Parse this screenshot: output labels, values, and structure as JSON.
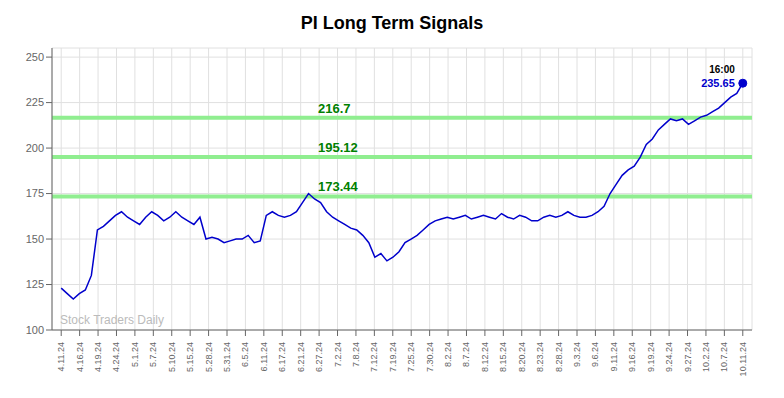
{
  "chart_data": {
    "type": "line",
    "title": "PI Long Term Signals",
    "color": "#0000cc",
    "grid": true,
    "x": [
      0,
      1,
      2,
      3,
      4,
      5,
      6,
      7,
      8,
      9,
      10,
      11,
      12,
      13,
      14,
      15,
      16,
      17,
      18,
      19,
      20,
      21,
      22,
      23,
      24,
      25,
      26,
      27,
      28,
      29,
      30,
      31,
      32,
      33,
      34,
      35,
      36,
      37,
      38,
      39,
      40,
      41,
      42,
      43,
      44,
      45,
      46,
      47,
      48,
      49,
      50,
      51,
      52,
      53,
      54,
      55,
      56,
      57,
      58,
      59,
      60,
      61,
      62,
      63,
      64,
      65,
      66,
      67,
      68,
      69,
      70,
      71,
      72,
      73,
      74,
      75,
      76,
      77,
      78,
      79,
      80,
      81,
      82,
      83,
      84,
      85,
      86,
      87,
      88,
      89,
      90,
      91,
      92,
      93,
      94,
      95,
      96,
      97,
      98,
      99,
      100,
      101,
      102,
      103,
      104,
      105,
      106,
      107,
      108,
      109,
      110,
      111,
      112,
      113
    ],
    "values": [
      123,
      120,
      117,
      120,
      122,
      130,
      155,
      157,
      160,
      163,
      165,
      162,
      160,
      158,
      162,
      165,
      163,
      160,
      162,
      165,
      162,
      160,
      158,
      162,
      150,
      151,
      150,
      148,
      149,
      150,
      150,
      152,
      148,
      149,
      163,
      165,
      163,
      162,
      163,
      165,
      170,
      175,
      172,
      170,
      165,
      162,
      160,
      158,
      156,
      155,
      152,
      148,
      140,
      142,
      138,
      140,
      143,
      148,
      150,
      152,
      155,
      158,
      160,
      161,
      162,
      161,
      162,
      163,
      161,
      162,
      163,
      162,
      161,
      164,
      162,
      161,
      163,
      162,
      160,
      160,
      162,
      163,
      162,
      163,
      165,
      163,
      162,
      162,
      163,
      165,
      168,
      175,
      180,
      185,
      188,
      190,
      195,
      202,
      205,
      210,
      213,
      216,
      215,
      216,
      213,
      215,
      217,
      218,
      220,
      222,
      225,
      228,
      230,
      235.65
    ],
    "xlim": [
      -1.527027,
      114.527027
    ],
    "xticks": [
      {
        "value": 0,
        "label": "4.11.24"
      },
      {
        "value": 3.054054,
        "label": "4.16.24"
      },
      {
        "value": 6.108108,
        "label": "4.19.24"
      },
      {
        "value": 9.162162,
        "label": "4.24.24"
      },
      {
        "value": 12.216216,
        "label": "5.1.24"
      },
      {
        "value": 15.27027,
        "label": "5.7.24"
      },
      {
        "value": 18.324324,
        "label": "5.10.24"
      },
      {
        "value": 21.378378,
        "label": "5.15.24"
      },
      {
        "value": 24.432432,
        "label": "5.28.24"
      },
      {
        "value": 27.486486,
        "label": "5.31.24"
      },
      {
        "value": 30.540541,
        "label": "6.5.24"
      },
      {
        "value": 33.594595,
        "label": "6.11.24"
      },
      {
        "value": 36.648649,
        "label": "6.17.24"
      },
      {
        "value": 39.702703,
        "label": "6.21.24"
      },
      {
        "value": 42.756757,
        "label": "6.27.24"
      },
      {
        "value": 45.810811,
        "label": "7.2.24"
      },
      {
        "value": 48.864865,
        "label": "7.8.24"
      },
      {
        "value": 51.918919,
        "label": "7.12.24"
      },
      {
        "value": 54.972973,
        "label": "7.19.24"
      },
      {
        "value": 58.027027,
        "label": "7.25.24"
      },
      {
        "value": 61.081081,
        "label": "7.30.24"
      },
      {
        "value": 64.135135,
        "label": "8.2.24"
      },
      {
        "value": 67.189189,
        "label": "8.7.24"
      },
      {
        "value": 70.243243,
        "label": "8.12.24"
      },
      {
        "value": 73.297297,
        "label": "8.15.24"
      },
      {
        "value": 76.351351,
        "label": "8.20.24"
      },
      {
        "value": 79.405405,
        "label": "8.23.24"
      },
      {
        "value": 82.459459,
        "label": "8.28.24"
      },
      {
        "value": 85.513514,
        "label": "9.3.24"
      },
      {
        "value": 88.567568,
        "label": "9.6.24"
      },
      {
        "value": 91.621622,
        "label": "9.11.24"
      },
      {
        "value": 94.675676,
        "label": "9.16.24"
      },
      {
        "value": 97.72973,
        "label": "9.19.24"
      },
      {
        "value": 100.783784,
        "label": "9.24.24"
      },
      {
        "value": 103.837838,
        "label": "9.27.24"
      },
      {
        "value": 106.891892,
        "label": "10.2.24"
      },
      {
        "value": 109.945946,
        "label": "10.7.24"
      },
      {
        "value": 113,
        "label": "10.11.24"
      }
    ],
    "ylim": [
      100,
      255
    ],
    "yticks": [
      100,
      125,
      150,
      175,
      200,
      225,
      250
    ],
    "hlines": {
      "values": [
        173.44,
        195.12,
        216.7
      ],
      "labels": [
        "173.44",
        "195.12",
        "216.7"
      ],
      "color": "#90ee90",
      "label_color": "#008000"
    },
    "last_point": {
      "time_label": "16:00",
      "price_label": "235.65",
      "time_color": "#000000",
      "price_color": "#0000cc",
      "color": "#0000cc"
    },
    "watermark": {
      "text": "Stock Traders Daily",
      "color": "#bbbbbb"
    }
  }
}
